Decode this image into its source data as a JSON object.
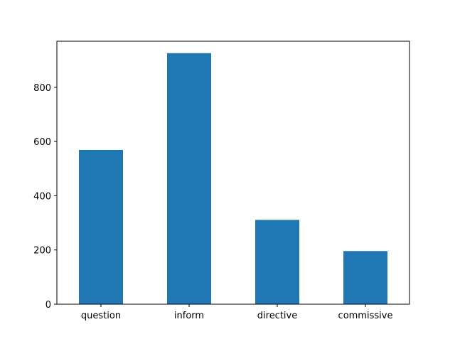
{
  "chart_data": {
    "type": "bar",
    "title": "",
    "xlabel": "",
    "ylabel": "",
    "categories": [
      "question",
      "inform",
      "directive",
      "commissive"
    ],
    "values": [
      569,
      926,
      311,
      196
    ],
    "ylim": [
      0,
      970
    ],
    "yticks": [
      0,
      200,
      400,
      600,
      800
    ],
    "grid": false,
    "legend": "none",
    "colors": {
      "bar": "#1f77b4",
      "axis": "#000000",
      "background": "#ffffff"
    }
  }
}
